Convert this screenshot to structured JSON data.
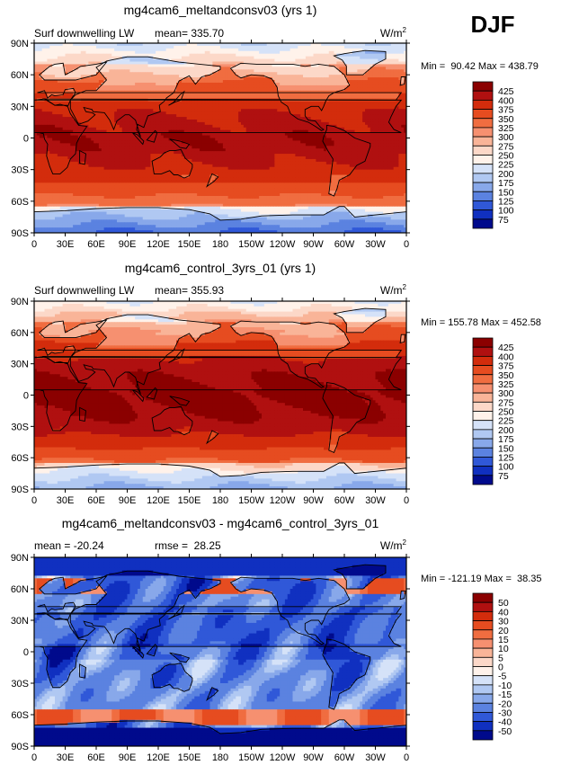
{
  "season": "DJF",
  "chart_data": [
    {
      "type": "heatmap",
      "title": "mg4cam6_meltandconsv03 (yrs 1)",
      "left_label": "Surf downwelling LW",
      "mean_label": "mean= 335.70",
      "units": "W/m",
      "units_sup": "2",
      "stats": "Min =  90.42 Max = 438.79",
      "min": 90.42,
      "max": 438.79,
      "mean": 335.7,
      "lat_ticks": [
        "90N",
        "60N",
        "30N",
        "0",
        "30S",
        "60S",
        "90S"
      ],
      "lon_ticks": [
        "0",
        "30E",
        "60E",
        "90E",
        "120E",
        "150E",
        "180",
        "150W",
        "120W",
        "90W",
        "60W",
        "30W",
        "0"
      ],
      "colorbar_levels": [
        "425",
        "400",
        "375",
        "350",
        "325",
        "300",
        "275",
        "250",
        "225",
        "200",
        "175",
        "150",
        "125",
        "100",
        "75"
      ],
      "colorbar_colors": [
        "#8b0000",
        "#b01010",
        "#d32c0c",
        "#e64c20",
        "#f06d40",
        "#f69070",
        "#f9b498",
        "#fcd8c8",
        "#fff2ea",
        "#d5e2f8",
        "#b0c8f2",
        "#88a8ea",
        "#5b82e0",
        "#3058d8",
        "#1030c0",
        "#000a8c"
      ],
      "field": "control"
    },
    {
      "type": "heatmap",
      "title": "mg4cam6_control_3yrs_01 (yrs 1)",
      "left_label": "Surf downwelling LW",
      "mean_label": "mean= 355.93",
      "units": "W/m",
      "units_sup": "2",
      "stats": "Min = 155.78 Max = 452.58",
      "min": 155.78,
      "max": 452.58,
      "mean": 355.93,
      "lat_ticks": [
        "90N",
        "60N",
        "30N",
        "0",
        "30S",
        "60S",
        "90S"
      ],
      "lon_ticks": [
        "0",
        "30E",
        "60E",
        "90E",
        "120E",
        "150E",
        "180",
        "150W",
        "120W",
        "90W",
        "60W",
        "30W",
        "0"
      ],
      "colorbar_levels": [
        "425",
        "400",
        "375",
        "350",
        "325",
        "300",
        "275",
        "250",
        "225",
        "200",
        "175",
        "150",
        "125",
        "100",
        "75"
      ],
      "colorbar_colors": [
        "#8b0000",
        "#b01010",
        "#d32c0c",
        "#e64c20",
        "#f06d40",
        "#f69070",
        "#f9b498",
        "#fcd8c8",
        "#fff2ea",
        "#d5e2f8",
        "#b0c8f2",
        "#88a8ea",
        "#5b82e0",
        "#3058d8",
        "#1030c0",
        "#000a8c"
      ],
      "field": "control2"
    },
    {
      "type": "heatmap",
      "title": "mg4cam6_meltandconsv03 - mg4cam6_control_3yrs_01",
      "left_label": "mean = -20.24",
      "mean_label": "rmse =  28.25",
      "units": "W/m",
      "units_sup": "2",
      "stats": "Min = -121.19 Max =  38.35",
      "min": -121.19,
      "max": 38.35,
      "mean": -20.24,
      "rmse": 28.25,
      "lat_ticks": [
        "90N",
        "60N",
        "30N",
        "0",
        "30S",
        "60S",
        "90S"
      ],
      "lon_ticks": [
        "0",
        "30E",
        "60E",
        "90E",
        "120E",
        "150E",
        "180",
        "150W",
        "120W",
        "90W",
        "60W",
        "30W",
        "0"
      ],
      "colorbar_levels": [
        "50",
        "40",
        "30",
        "20",
        "15",
        "10",
        "5",
        "0",
        "-5",
        "-10",
        "-15",
        "-20",
        "-30",
        "-40",
        "-50"
      ],
      "colorbar_colors": [
        "#8b0000",
        "#b01010",
        "#d32c0c",
        "#e64c20",
        "#f06d40",
        "#f69070",
        "#f9b498",
        "#fcd8c8",
        "#fff2ea",
        "#d5e2f8",
        "#b0c8f2",
        "#88a8ea",
        "#5b82e0",
        "#3058d8",
        "#1030c0",
        "#000a8c"
      ],
      "field": "diff"
    }
  ]
}
